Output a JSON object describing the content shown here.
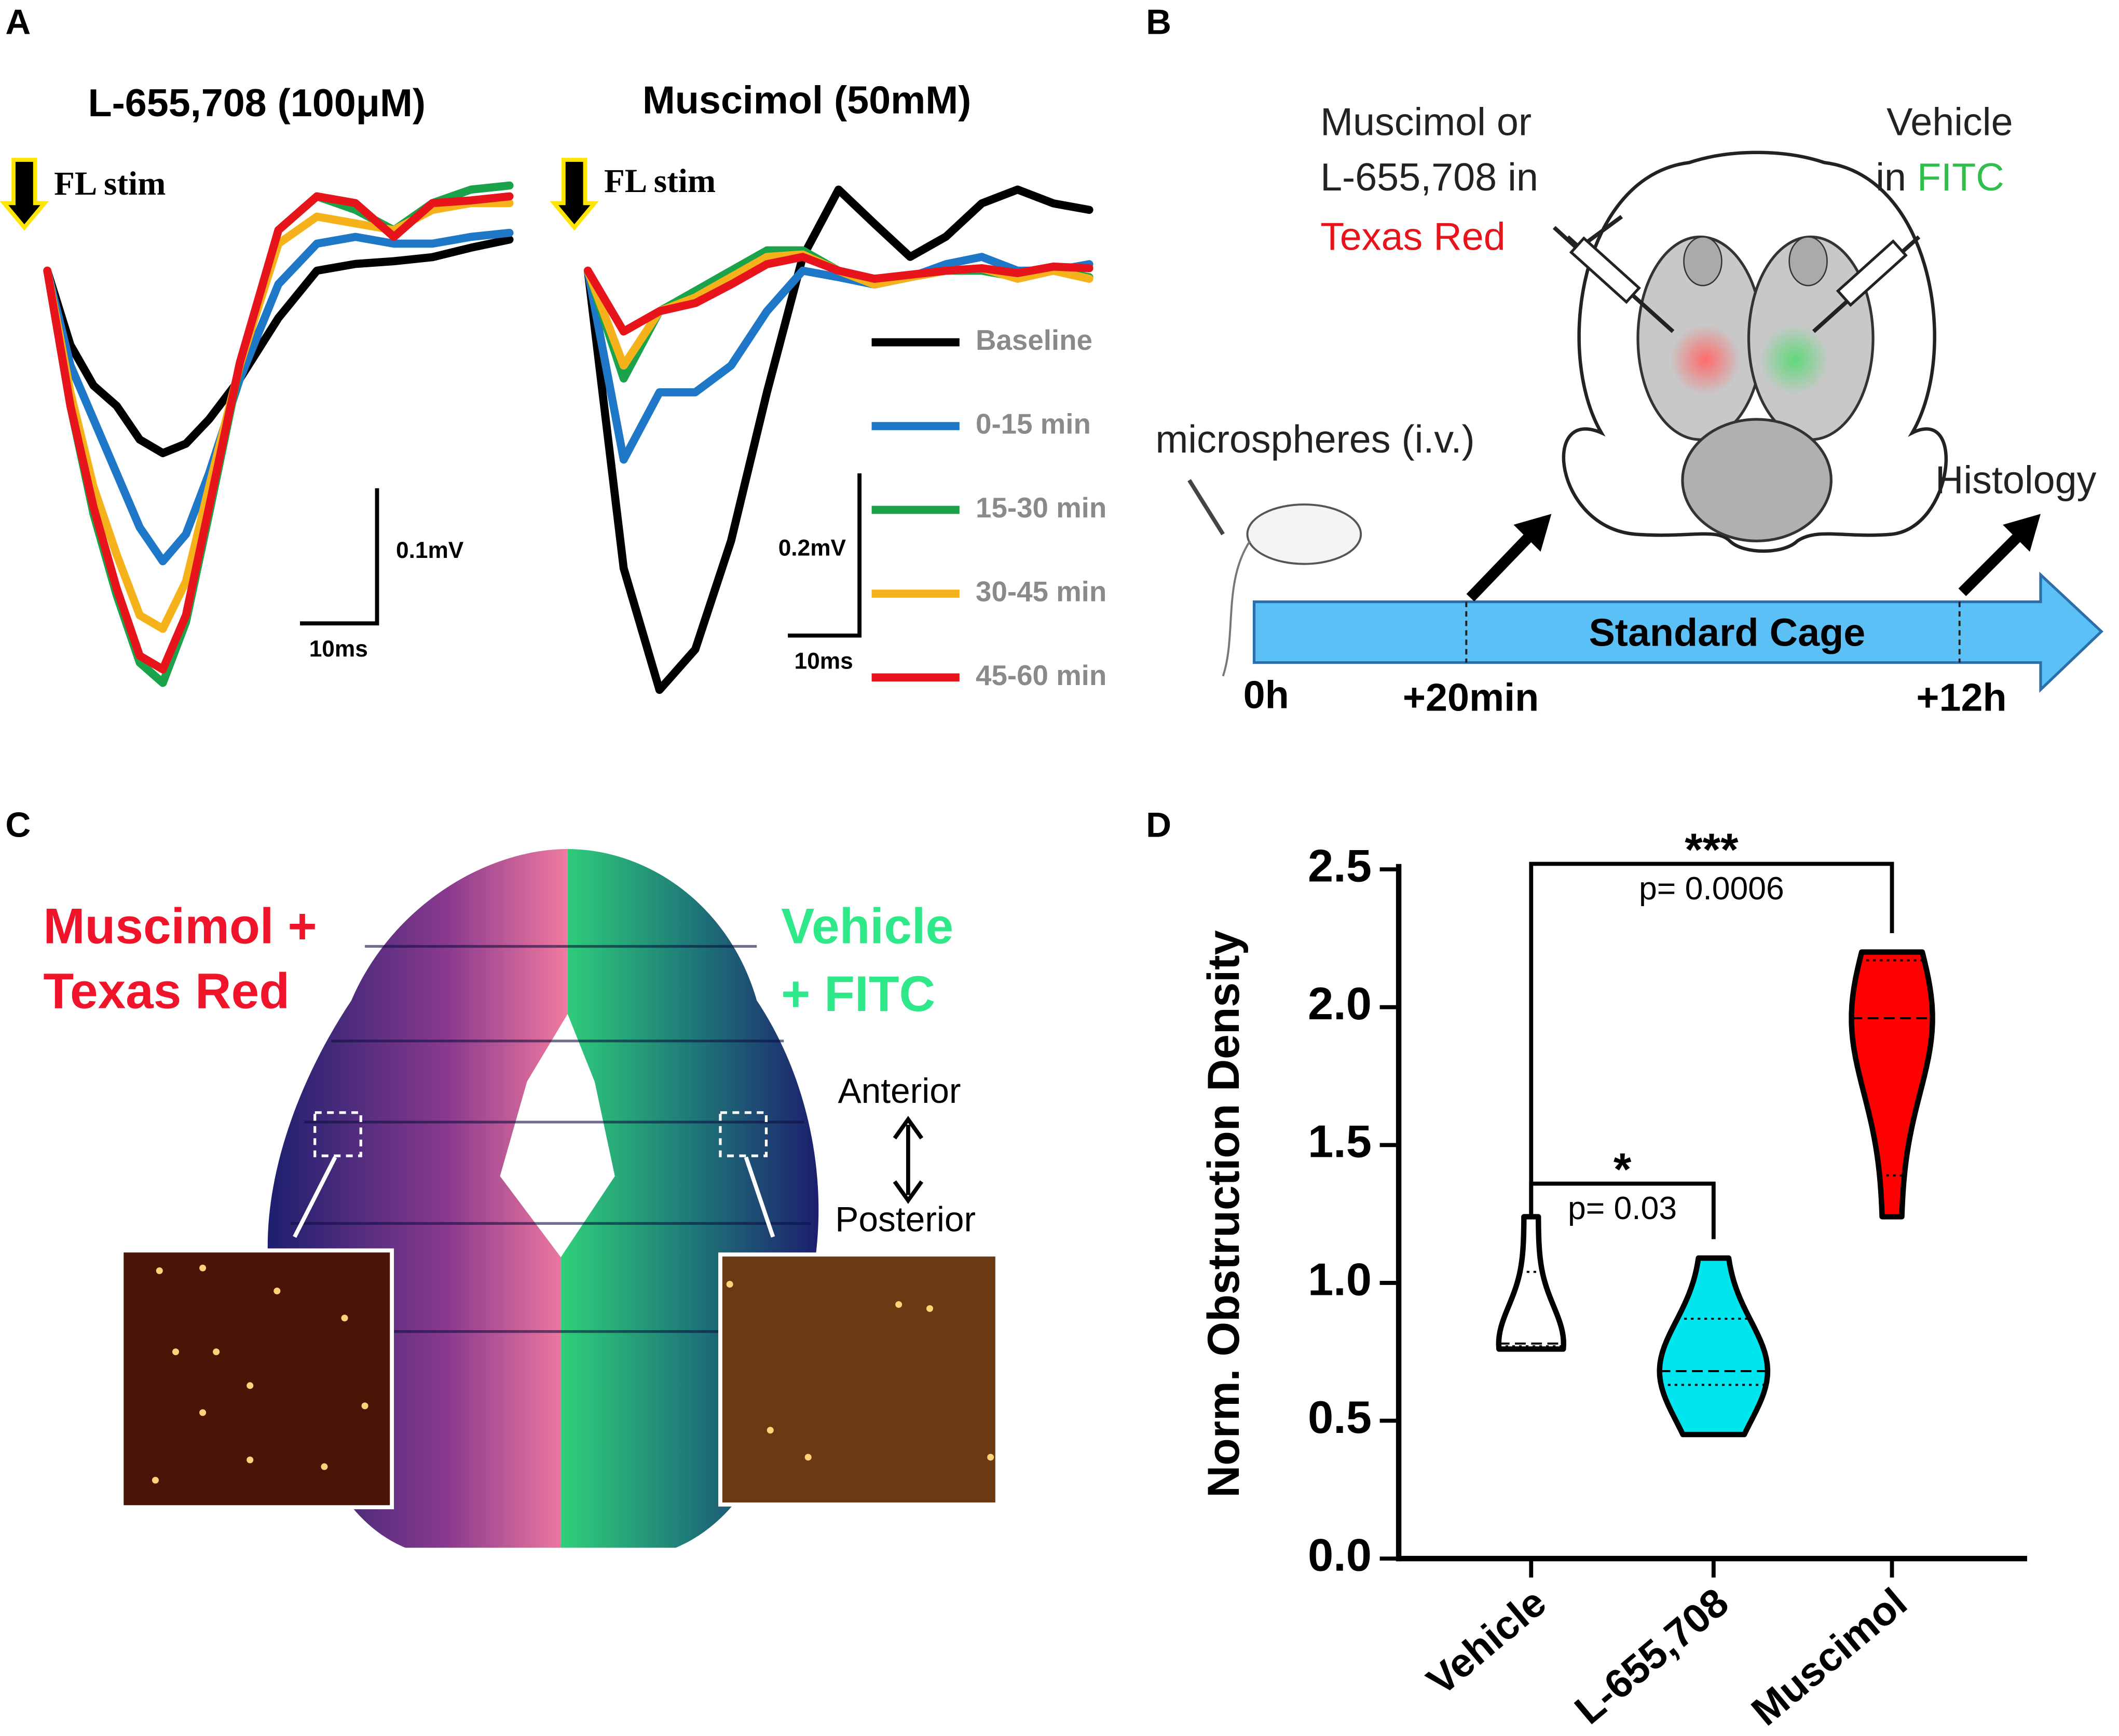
{
  "panel_labels": {
    "a": "A",
    "b": "B",
    "c": "C",
    "d": "D"
  },
  "chart_data": [
    {
      "type": "line",
      "title": "L-655,708 (100μM)",
      "stimulus": "FL stim",
      "x": [
        0,
        3,
        6,
        9,
        12,
        15,
        18,
        21,
        25,
        30,
        35,
        40,
        45,
        50,
        55,
        60
      ],
      "series": [
        {
          "color": "#000000",
          "values": [
            0,
            -0.055,
            -0.085,
            -0.1,
            -0.125,
            -0.135,
            -0.128,
            -0.11,
            -0.08,
            -0.035,
            0,
            0.005,
            0.007,
            0.01,
            0.017,
            0.023
          ]
        },
        {
          "color": "#1f77c8",
          "values": [
            0,
            -0.07,
            -0.11,
            -0.15,
            -0.19,
            -0.215,
            -0.195,
            -0.15,
            -0.08,
            -0.01,
            0.02,
            0.025,
            0.02,
            0.02,
            0.025,
            0.028
          ]
        },
        {
          "color": "#1aa34a",
          "values": [
            0,
            -0.1,
            -0.18,
            -0.24,
            -0.29,
            -0.305,
            -0.26,
            -0.18,
            -0.07,
            0.03,
            0.055,
            0.045,
            0.03,
            0.05,
            0.06,
            0.063
          ]
        },
        {
          "color": "#f6b21a",
          "values": [
            0,
            -0.09,
            -0.16,
            -0.21,
            -0.255,
            -0.265,
            -0.23,
            -0.16,
            -0.07,
            0.02,
            0.04,
            0.035,
            0.03,
            0.045,
            0.05,
            0.05
          ]
        },
        {
          "color": "#e8141c",
          "values": [
            0,
            -0.1,
            -0.175,
            -0.235,
            -0.285,
            -0.295,
            -0.255,
            -0.175,
            -0.068,
            0.03,
            0.055,
            0.05,
            0.025,
            0.05,
            0.052,
            0.055
          ]
        }
      ],
      "scalebar": {
        "x": {
          "value": 10,
          "label": "10ms"
        },
        "y": {
          "value": 0.1,
          "label": "0.1mV"
        }
      }
    },
    {
      "type": "line",
      "title": "Muscimol (50mM)",
      "stimulus": "FL stim",
      "legend": true,
      "x": [
        0,
        5,
        10,
        15,
        20,
        25,
        30,
        35,
        40,
        45,
        50,
        55,
        60,
        65,
        70
      ],
      "series": [
        {
          "name": "Baseline",
          "color": "#000000",
          "values": [
            0,
            -0.367,
            -0.517,
            -0.467,
            -0.333,
            -0.15,
            0.017,
            0.1,
            0.058,
            0.017,
            0.042,
            0.083,
            0.1,
            0.083,
            0.075
          ]
        },
        {
          "name": "0-15 min",
          "color": "#1f77c8",
          "values": [
            0,
            -0.233,
            -0.15,
            -0.15,
            -0.117,
            -0.05,
            0,
            -0.008,
            -0.017,
            -0.008,
            0.008,
            0.017,
            0,
            0,
            0.008
          ]
        },
        {
          "name": "15-30 min",
          "color": "#1aa34a",
          "values": [
            0,
            -0.133,
            -0.05,
            -0.025,
            0,
            0.025,
            0.025,
            0,
            -0.017,
            -0.008,
            0,
            0,
            -0.008,
            0,
            -0.008
          ]
        },
        {
          "name": "30-45 min",
          "color": "#f6b21a",
          "values": [
            0,
            -0.117,
            -0.05,
            -0.033,
            -0.008,
            0.017,
            0.02,
            0,
            -0.017,
            -0.008,
            0,
            0.003,
            -0.01,
            0,
            -0.01
          ]
        },
        {
          "name": "45-60 min",
          "color": "#e8141c",
          "values": [
            0,
            -0.075,
            -0.05,
            -0.04,
            -0.017,
            0.008,
            0.017,
            0,
            -0.01,
            -0.005,
            0,
            0.003,
            -0.003,
            0.005,
            0.003
          ]
        }
      ],
      "scalebar": {
        "x": {
          "value": 10,
          "label": "10ms"
        },
        "y": {
          "value": 0.2,
          "label": "0.2mV"
        }
      }
    },
    {
      "type": "violin",
      "ylabel": "Norm. Obstruction Density",
      "categories": [
        "Vehicle",
        "L-655,708",
        "Muscimol"
      ],
      "violins": [
        {
          "color": "#ffffff",
          "min": 0.76,
          "q1": 0.77,
          "median": 0.78,
          "q3": 1.04,
          "max": 1.24
        },
        {
          "color": "#00e5ee",
          "min": 0.45,
          "q1": 0.63,
          "median": 0.68,
          "q3": 0.87,
          "max": 1.09
        },
        {
          "color": "#ff0000",
          "min": 1.24,
          "q1": 1.39,
          "median": 1.96,
          "q3": 2.17,
          "max": 2.2
        }
      ],
      "ylim": [
        0,
        2.5
      ],
      "yticks": [
        {
          "value": 0,
          "label": "0.0"
        },
        0.5,
        {
          "value": 1,
          "label": "1.0"
        },
        1.5,
        {
          "value": 2,
          "label": "2.0"
        },
        2.5
      ],
      "significance": [
        {
          "label": "***",
          "p": "p= 0.0006",
          "from": 0,
          "to": 2,
          "y": 2.52
        },
        {
          "label": "*",
          "p": "p= 0.03",
          "from": 0,
          "to": 1,
          "y": 1.36
        }
      ]
    }
  ],
  "diagram": {
    "drug_line1": "Muscimol or",
    "drug_line2": "L-655,708 in",
    "drug_dye": "Texas Red",
    "vehicle_line1": "Vehicle",
    "vehicle_line2": "in ",
    "vehicle_dye": "FITC",
    "microspheres": "microspheres (i.v.)",
    "histology": "Histology",
    "cage": "Standard Cage",
    "t0": "0h",
    "t1": "+20min",
    "t2": "+12h"
  },
  "image": {
    "left_line1": "Muscimol +",
    "left_line2": "Texas Red",
    "right_line1": "Vehicle",
    "right_line2": "+ FITC",
    "anterior": "Anterior",
    "posterior": "Posterior"
  }
}
